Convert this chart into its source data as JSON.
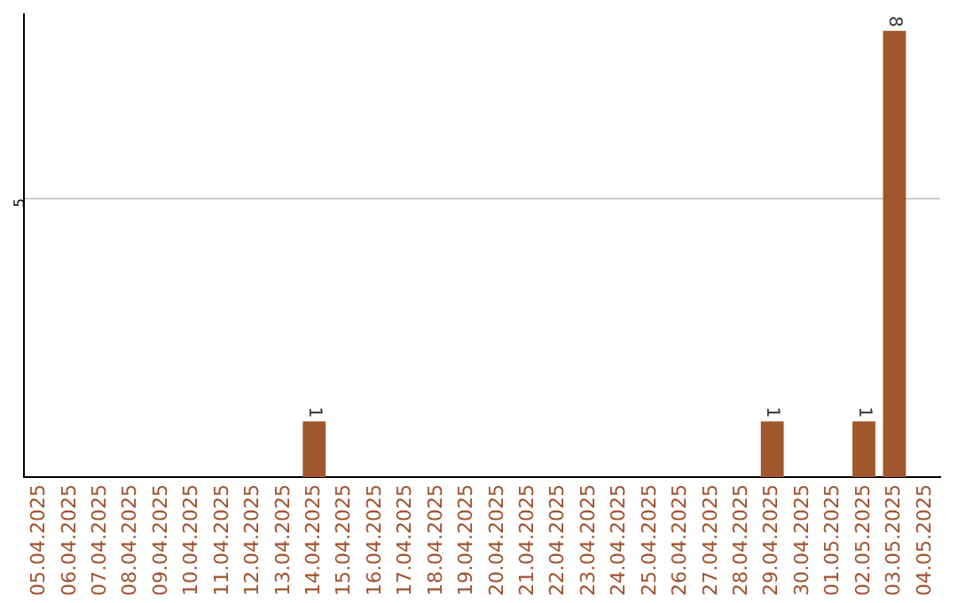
{
  "chart_data": {
    "type": "bar",
    "categories": [
      "05.04.2025",
      "06.04.2025",
      "07.04.2025",
      "08.04.2025",
      "09.04.2025",
      "10.04.2025",
      "11.04.2025",
      "12.04.2025",
      "13.04.2025",
      "14.04.2025",
      "15.04.2025",
      "16.04.2025",
      "17.04.2025",
      "18.04.2025",
      "19.04.2025",
      "20.04.2025",
      "21.04.2025",
      "22.04.2025",
      "23.04.2025",
      "24.04.2025",
      "25.04.2025",
      "26.04.2025",
      "27.04.2025",
      "28.04.2025",
      "29.04.2025",
      "30.04.2025",
      "01.05.2025",
      "02.05.2025",
      "03.05.2025",
      "04.05.2025"
    ],
    "values": [
      0,
      0,
      0,
      0,
      0,
      0,
      0,
      0,
      0,
      1,
      0,
      0,
      0,
      0,
      0,
      0,
      0,
      0,
      0,
      0,
      0,
      0,
      0,
      0,
      1,
      0,
      0,
      1,
      8,
      0
    ],
    "value_labels": [
      null,
      null,
      null,
      null,
      null,
      null,
      null,
      null,
      null,
      "1",
      null,
      null,
      null,
      null,
      null,
      null,
      null,
      null,
      null,
      null,
      null,
      null,
      null,
      null,
      "1",
      null,
      null,
      "1",
      "8",
      null
    ],
    "color": "#a0572b",
    "ylim": [
      0,
      8.3
    ],
    "yticks": [
      5
    ],
    "grid": "y",
    "legend": false
  }
}
